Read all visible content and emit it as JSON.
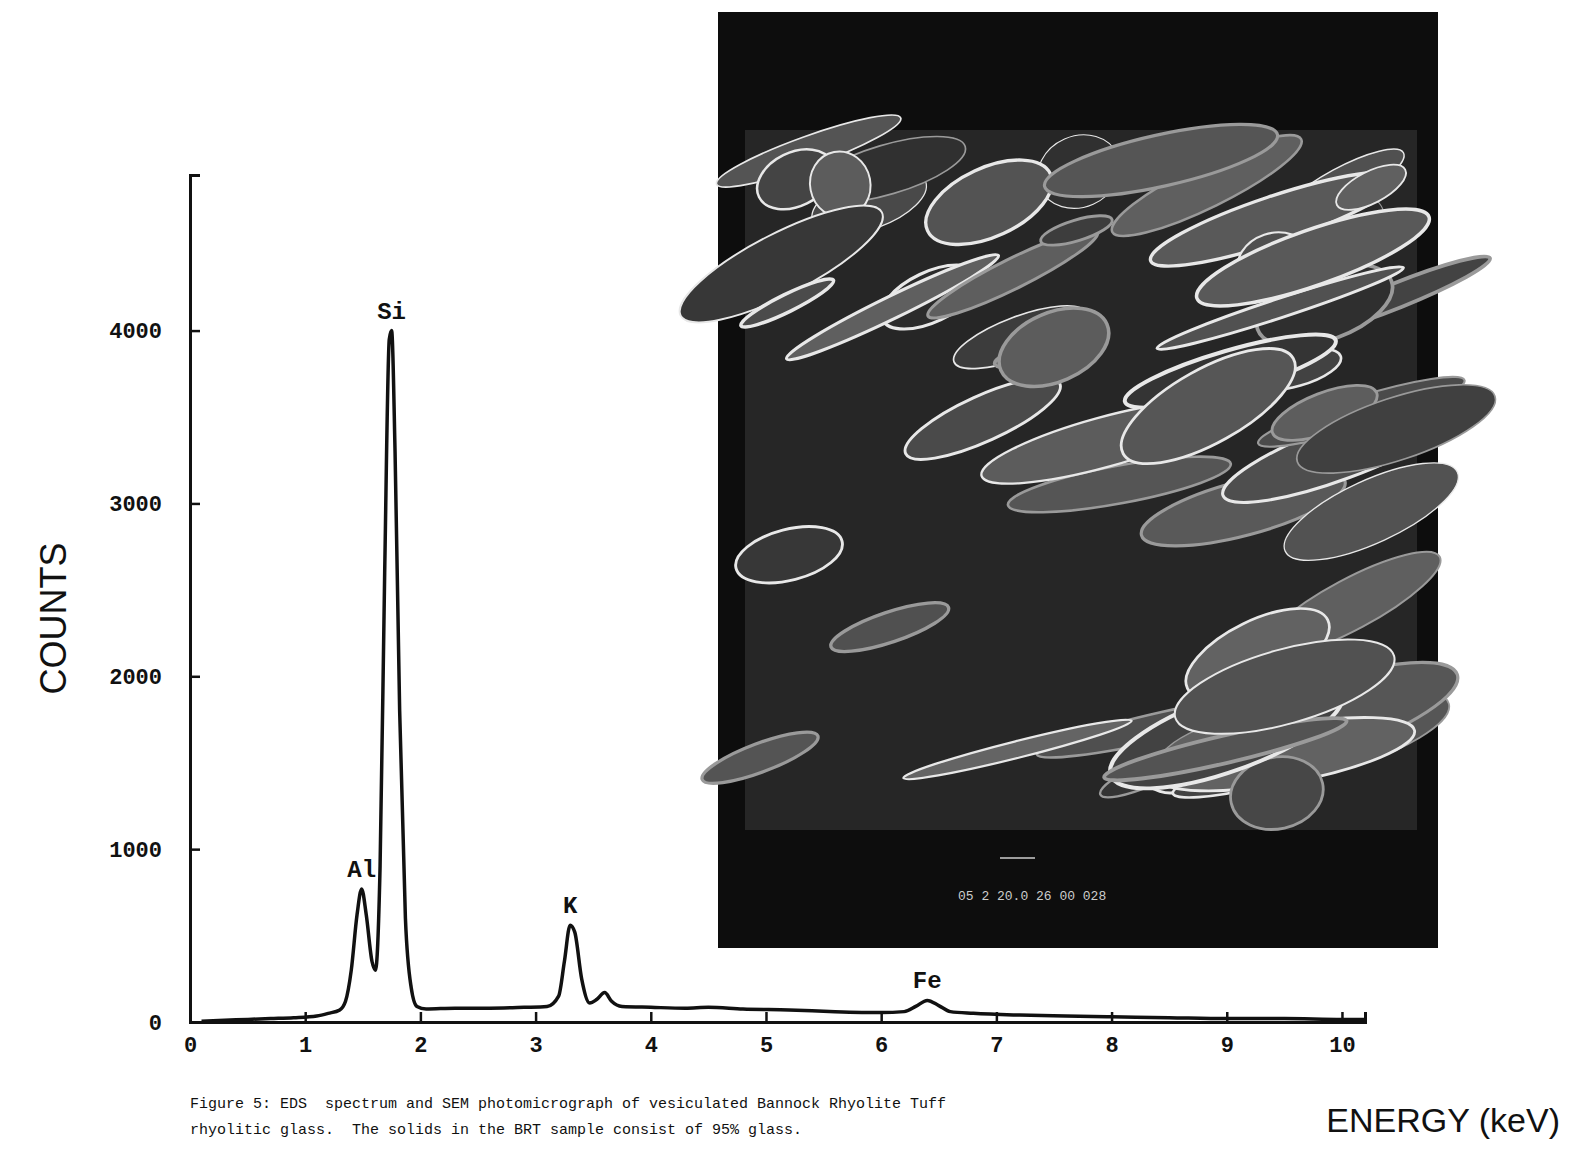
{
  "chart_data": {
    "type": "line",
    "x_label": "ENERGY (keV)",
    "y_label": "COUNTS",
    "color": "#111111",
    "x": [
      0.1,
      0.3,
      0.5,
      0.7,
      0.9,
      1.1,
      1.2,
      1.3,
      1.35,
      1.4,
      1.45,
      1.49,
      1.53,
      1.58,
      1.61,
      1.65,
      1.69,
      1.73,
      1.75,
      1.78,
      1.82,
      1.87,
      1.92,
      1.97,
      2.05,
      2.3,
      2.6,
      2.9,
      3.1,
      3.2,
      3.25,
      3.3,
      3.34,
      3.4,
      3.47,
      3.53,
      3.6,
      3.66,
      3.75,
      4.0,
      4.3,
      4.5,
      4.8,
      5.2,
      5.6,
      6.0,
      6.2,
      6.3,
      6.4,
      6.5,
      6.6,
      6.8,
      7.2,
      7.6,
      8.0,
      8.5,
      9.0,
      9.5,
      10.0,
      10.2
    ],
    "values": [
      5,
      10,
      15,
      20,
      25,
      35,
      50,
      70,
      120,
      300,
      620,
      770,
      620,
      350,
      300,
      900,
      2600,
      3950,
      4000,
      3300,
      1800,
      600,
      200,
      90,
      75,
      80,
      80,
      85,
      90,
      150,
      350,
      560,
      520,
      250,
      110,
      130,
      170,
      120,
      90,
      85,
      80,
      85,
      75,
      70,
      60,
      55,
      60,
      90,
      125,
      95,
      60,
      50,
      40,
      35,
      30,
      25,
      20,
      20,
      15,
      15
    ],
    "xlim": [
      0,
      10.2
    ],
    "xticks": [
      0,
      1,
      2,
      3,
      4,
      5,
      6,
      7,
      8,
      9,
      10
    ],
    "ylim": [
      0,
      4900
    ],
    "yticks": [
      0,
      1000,
      2000,
      3000,
      4000
    ],
    "annotations": [
      {
        "text": "Al",
        "x": 1.49
      },
      {
        "text": "Si",
        "x": 1.75
      },
      {
        "text": "K",
        "x": 3.3
      },
      {
        "text": "Fe",
        "x": 6.4
      }
    ]
  },
  "micrograph_label": "05 2 20.0 26 00 028",
  "caption": [
    "Figure 5: EDS  spectrum and SEM photomicrograph of vesiculated Bannock Rhyolite Tuff",
    "rhyolitic glass.  The solids in the BRT sample consist of 95% glass."
  ]
}
